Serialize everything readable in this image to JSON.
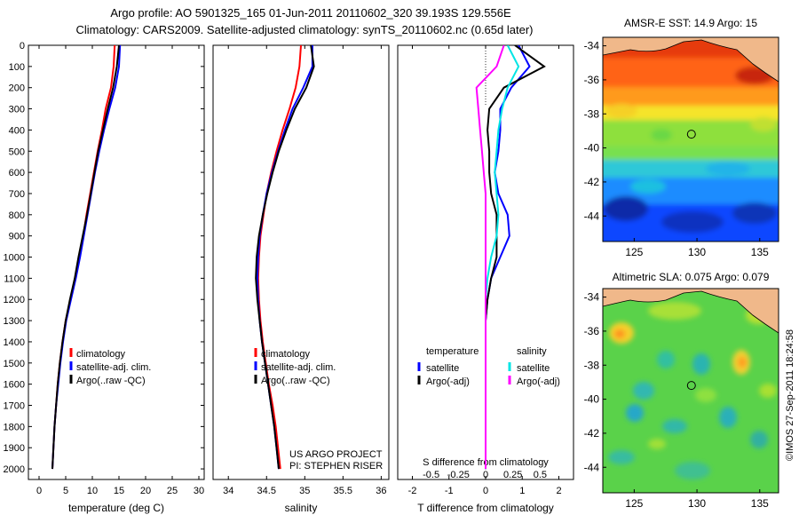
{
  "title_line1": "Argo profile: AO 5901325_165 01-Jun-2011 20110602_320 39.193S 129.556E",
  "title_line2": "Climatology: CARS2009. Satellite-adjusted climatology: synTS_20110602.nc (0.65d later)",
  "side_text": "©IMOS 27-Sep-2011 18:24:58",
  "colors": {
    "climatology": "#ff0000",
    "satellite": "#0000ff",
    "argo": "#000000",
    "salinity_satellite": "#00e5e5",
    "salinity_argo": "#ff00ff"
  },
  "chart_data": [
    {
      "type": "line",
      "xlabel": "temperature (deg C)",
      "ylabel": "",
      "xlim": [
        -2,
        31
      ],
      "ylim": [
        2050,
        0
      ],
      "xticks": [
        0,
        5,
        10,
        15,
        20,
        25,
        30
      ],
      "yticks": [
        0,
        100,
        200,
        300,
        400,
        500,
        600,
        700,
        800,
        900,
        1000,
        1100,
        1200,
        1300,
        1400,
        1500,
        1600,
        1700,
        1800,
        1900,
        2000
      ],
      "legend_position": "lower-left",
      "series": [
        {
          "name": "climatology",
          "color": "#ff0000",
          "x": [
            14.2,
            14.0,
            13.5,
            12.5,
            11.8,
            11.0,
            10.3,
            9.6,
            8.9,
            8.3,
            7.6,
            6.8,
            5.9,
            5.0,
            4.4,
            3.9,
            3.5,
            3.2,
            2.9,
            2.7,
            2.5
          ],
          "y": [
            0,
            100,
            200,
            300,
            400,
            500,
            600,
            700,
            800,
            900,
            1000,
            1100,
            1200,
            1300,
            1400,
            1500,
            1600,
            1700,
            1800,
            1900,
            2000
          ]
        },
        {
          "name": "satellite-adj. clim.",
          "color": "#0000ff",
          "x": [
            15.2,
            15.0,
            14.3,
            13.2,
            12.2,
            11.3,
            10.5,
            9.8,
            9.1,
            8.4,
            7.7,
            6.9,
            6.0,
            5.1,
            4.5,
            4.0,
            3.6,
            3.2,
            2.9,
            2.7,
            2.5
          ],
          "y": [
            0,
            100,
            200,
            300,
            400,
            500,
            600,
            700,
            800,
            900,
            1000,
            1100,
            1200,
            1300,
            1400,
            1500,
            1600,
            1700,
            1800,
            1900,
            2000
          ]
        },
        {
          "name": "Argo(..raw -QC)",
          "color": "#000000",
          "x": [
            15.0,
            14.6,
            13.9,
            12.9,
            12.0,
            11.1,
            10.4,
            9.7,
            9.0,
            8.2,
            7.4,
            6.7,
            5.8,
            5.0,
            4.4,
            3.9,
            3.5,
            3.2,
            2.9,
            2.7,
            2.5
          ],
          "y": [
            0,
            100,
            200,
            300,
            400,
            500,
            600,
            700,
            800,
            900,
            1000,
            1100,
            1200,
            1300,
            1400,
            1500,
            1600,
            1700,
            1800,
            1900,
            2000
          ]
        }
      ]
    },
    {
      "type": "line",
      "xlabel": "salinity",
      "ylabel": "",
      "xlim": [
        33.8,
        36.1
      ],
      "ylim": [
        2050,
        0
      ],
      "xticks": [
        34,
        34.5,
        35,
        35.5,
        36
      ],
      "xticklabels": [
        "34",
        "34.5",
        "35",
        "35.5",
        "36"
      ],
      "legend_position": "lower-left",
      "annotations": [
        "US ARGO PROJECT",
        "PI: STEPHEN RISER"
      ],
      "series": [
        {
          "name": "climatology",
          "color": "#ff0000",
          "x": [
            34.95,
            34.93,
            34.88,
            34.8,
            34.71,
            34.63,
            34.56,
            34.5,
            34.46,
            34.42,
            34.4,
            34.39,
            34.4,
            34.42,
            34.45,
            34.49,
            34.53,
            34.58,
            34.62,
            34.65,
            34.68
          ],
          "y": [
            0,
            100,
            200,
            300,
            400,
            500,
            600,
            700,
            800,
            900,
            1000,
            1100,
            1200,
            1300,
            1400,
            1500,
            1600,
            1700,
            1800,
            1900,
            2000
          ]
        },
        {
          "name": "satellite-adj. clim.",
          "color": "#0000ff",
          "x": [
            35.1,
            35.1,
            34.98,
            34.84,
            34.74,
            34.65,
            34.57,
            34.5,
            34.45,
            34.41,
            34.39,
            34.38,
            34.39,
            34.41,
            34.44,
            34.48,
            34.52,
            34.56,
            34.6,
            34.63,
            34.66
          ],
          "y": [
            0,
            100,
            200,
            300,
            400,
            500,
            600,
            700,
            800,
            900,
            1000,
            1100,
            1200,
            1300,
            1400,
            1500,
            1600,
            1700,
            1800,
            1900,
            2000
          ]
        },
        {
          "name": "Argo(..raw -QC)",
          "color": "#000000",
          "x": [
            35.08,
            35.12,
            35.02,
            34.87,
            34.76,
            34.66,
            34.58,
            34.51,
            34.45,
            34.4,
            34.37,
            34.36,
            34.38,
            34.41,
            34.44,
            34.48,
            34.52,
            34.56,
            34.6,
            34.63,
            34.66
          ],
          "y": [
            0,
            100,
            200,
            300,
            400,
            500,
            600,
            700,
            800,
            900,
            1000,
            1100,
            1200,
            1300,
            1400,
            1500,
            1600,
            1700,
            1800,
            1900,
            2000
          ]
        }
      ]
    },
    {
      "type": "line",
      "xlabel": "T difference from climatology",
      "xlabel_top": "S difference from climatology",
      "xlim": [
        -2.4,
        2.4
      ],
      "ylim": [
        2050,
        0
      ],
      "xticks": [
        -2,
        -1,
        0,
        1,
        2
      ],
      "xticks_top": [
        -0.5,
        -0.25,
        0,
        0.25,
        0.5
      ],
      "legend_position": "lower-center",
      "legend_headers": [
        "temperature",
        "salinity"
      ],
      "series": [
        {
          "name": "satellite",
          "quantity": "temperature",
          "color": "#0000ff",
          "x": [
            0.9,
            1.2,
            0.7,
            0.4,
            0.4,
            0.35,
            0.25,
            0.35,
            0.6,
            0.65,
            0.4,
            0.15,
            0.05,
            0.0,
            0.0,
            0.0,
            0.0,
            0.0,
            0.0,
            0.0,
            0.0
          ],
          "y": [
            0,
            100,
            200,
            300,
            400,
            500,
            600,
            700,
            800,
            900,
            1000,
            1100,
            1200,
            1300,
            1400,
            1500,
            1600,
            1700,
            1800,
            1900,
            2000
          ]
        },
        {
          "name": "Argo(-adj)",
          "quantity": "temperature",
          "color": "#000000",
          "x": [
            0.8,
            1.6,
            0.5,
            0.1,
            0.05,
            0.1,
            0.1,
            0.15,
            0.3,
            0.3,
            0.3,
            0.15,
            0.05,
            0.0,
            0.0,
            0.0,
            0.0,
            0.0,
            0.0,
            0.0,
            0.0
          ],
          "y": [
            0,
            100,
            200,
            300,
            400,
            500,
            600,
            700,
            800,
            900,
            1000,
            1100,
            1200,
            1300,
            1400,
            1500,
            1600,
            1700,
            1800,
            1900,
            2000
          ]
        },
        {
          "name": "satellite",
          "quantity": "salinity",
          "color": "#00e5e5",
          "x": [
            0.6,
            0.9,
            0.6,
            0.45,
            0.35,
            0.3,
            0.25,
            0.3,
            0.35,
            0.3,
            0.15,
            0.05,
            0.0,
            0.0,
            0.0,
            0.0,
            0.0,
            0.0,
            0.0,
            0.0,
            0.0
          ],
          "y": [
            0,
            100,
            200,
            300,
            400,
            500,
            600,
            700,
            800,
            900,
            1000,
            1100,
            1200,
            1300,
            1400,
            1500,
            1600,
            1700,
            1800,
            1900,
            2000
          ]
        },
        {
          "name": "Argo(-adj)",
          "quantity": "salinity",
          "color": "#ff00ff",
          "x": [
            0.5,
            0.3,
            -0.25,
            -0.2,
            -0.15,
            -0.1,
            -0.05,
            0.0,
            0.0,
            0.0,
            0.0,
            0.0,
            0.0,
            0.0,
            0.0,
            0.0,
            0.0,
            0.0,
            0.0,
            0.0,
            0.0
          ],
          "y": [
            0,
            100,
            200,
            300,
            400,
            500,
            600,
            700,
            800,
            900,
            1000,
            1100,
            1200,
            1300,
            1400,
            1500,
            1600,
            1700,
            1800,
            1900,
            2000
          ]
        }
      ]
    },
    {
      "type": "heatmap",
      "title": "AMSR-E SST: 14.9 Argo: 15",
      "xlim": [
        122.5,
        136.5
      ],
      "ylim": [
        -45.5,
        -33.5
      ],
      "xticks": [
        125,
        130,
        135
      ],
      "yticks": [
        -34,
        -36,
        -38,
        -40,
        -42,
        -44
      ],
      "marker": {
        "lon": 129.556,
        "lat": -39.193
      },
      "colormap": "jet",
      "description_of_field": "warm (red) north, cold (blue) south; land (tan) top-left and top-right"
    },
    {
      "type": "heatmap",
      "title": "Altimetric SLA: 0.075 Argo: 0.079",
      "xlim": [
        122.5,
        136.5
      ],
      "ylim": [
        -45.5,
        -33.5
      ],
      "xticks": [
        125,
        130,
        135
      ],
      "yticks": [
        -34,
        -36,
        -38,
        -40,
        -42,
        -44
      ],
      "marker": {
        "lon": 129.556,
        "lat": -39.193
      },
      "colormap": "jet"
    }
  ]
}
